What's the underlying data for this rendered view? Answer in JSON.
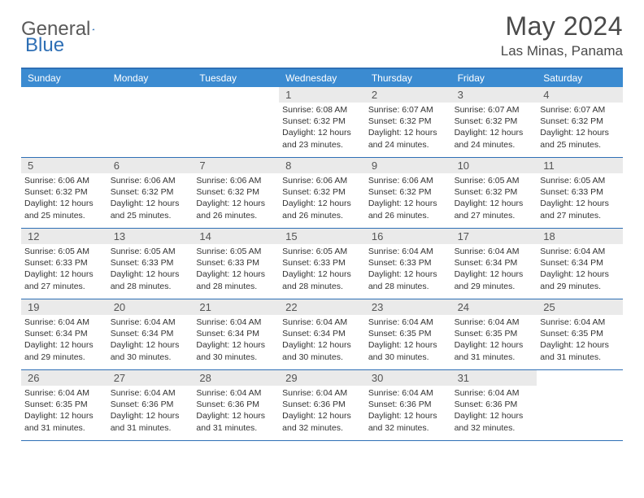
{
  "logo": {
    "part1": "General",
    "part2": "Blue"
  },
  "title": "May 2024",
  "location": "Las Minas, Panama",
  "colors": {
    "header_bar": "#3b8bd1",
    "border": "#2e6fb5",
    "day_num_bg": "#eaeaea",
    "text_dark": "#4a4a4a",
    "logo_gray": "#5a5a5a",
    "logo_blue": "#2e6fb5"
  },
  "days_of_week": [
    "Sunday",
    "Monday",
    "Tuesday",
    "Wednesday",
    "Thursday",
    "Friday",
    "Saturday"
  ],
  "cells": [
    {
      "n": "",
      "sr": "",
      "ss": "",
      "dl": ""
    },
    {
      "n": "",
      "sr": "",
      "ss": "",
      "dl": ""
    },
    {
      "n": "",
      "sr": "",
      "ss": "",
      "dl": ""
    },
    {
      "n": "1",
      "sr": "Sunrise: 6:08 AM",
      "ss": "Sunset: 6:32 PM",
      "dl": "Daylight: 12 hours and 23 minutes."
    },
    {
      "n": "2",
      "sr": "Sunrise: 6:07 AM",
      "ss": "Sunset: 6:32 PM",
      "dl": "Daylight: 12 hours and 24 minutes."
    },
    {
      "n": "3",
      "sr": "Sunrise: 6:07 AM",
      "ss": "Sunset: 6:32 PM",
      "dl": "Daylight: 12 hours and 24 minutes."
    },
    {
      "n": "4",
      "sr": "Sunrise: 6:07 AM",
      "ss": "Sunset: 6:32 PM",
      "dl": "Daylight: 12 hours and 25 minutes."
    },
    {
      "n": "5",
      "sr": "Sunrise: 6:06 AM",
      "ss": "Sunset: 6:32 PM",
      "dl": "Daylight: 12 hours and 25 minutes."
    },
    {
      "n": "6",
      "sr": "Sunrise: 6:06 AM",
      "ss": "Sunset: 6:32 PM",
      "dl": "Daylight: 12 hours and 25 minutes."
    },
    {
      "n": "7",
      "sr": "Sunrise: 6:06 AM",
      "ss": "Sunset: 6:32 PM",
      "dl": "Daylight: 12 hours and 26 minutes."
    },
    {
      "n": "8",
      "sr": "Sunrise: 6:06 AM",
      "ss": "Sunset: 6:32 PM",
      "dl": "Daylight: 12 hours and 26 minutes."
    },
    {
      "n": "9",
      "sr": "Sunrise: 6:06 AM",
      "ss": "Sunset: 6:32 PM",
      "dl": "Daylight: 12 hours and 26 minutes."
    },
    {
      "n": "10",
      "sr": "Sunrise: 6:05 AM",
      "ss": "Sunset: 6:32 PM",
      "dl": "Daylight: 12 hours and 27 minutes."
    },
    {
      "n": "11",
      "sr": "Sunrise: 6:05 AM",
      "ss": "Sunset: 6:33 PM",
      "dl": "Daylight: 12 hours and 27 minutes."
    },
    {
      "n": "12",
      "sr": "Sunrise: 6:05 AM",
      "ss": "Sunset: 6:33 PM",
      "dl": "Daylight: 12 hours and 27 minutes."
    },
    {
      "n": "13",
      "sr": "Sunrise: 6:05 AM",
      "ss": "Sunset: 6:33 PM",
      "dl": "Daylight: 12 hours and 28 minutes."
    },
    {
      "n": "14",
      "sr": "Sunrise: 6:05 AM",
      "ss": "Sunset: 6:33 PM",
      "dl": "Daylight: 12 hours and 28 minutes."
    },
    {
      "n": "15",
      "sr": "Sunrise: 6:05 AM",
      "ss": "Sunset: 6:33 PM",
      "dl": "Daylight: 12 hours and 28 minutes."
    },
    {
      "n": "16",
      "sr": "Sunrise: 6:04 AM",
      "ss": "Sunset: 6:33 PM",
      "dl": "Daylight: 12 hours and 28 minutes."
    },
    {
      "n": "17",
      "sr": "Sunrise: 6:04 AM",
      "ss": "Sunset: 6:34 PM",
      "dl": "Daylight: 12 hours and 29 minutes."
    },
    {
      "n": "18",
      "sr": "Sunrise: 6:04 AM",
      "ss": "Sunset: 6:34 PM",
      "dl": "Daylight: 12 hours and 29 minutes."
    },
    {
      "n": "19",
      "sr": "Sunrise: 6:04 AM",
      "ss": "Sunset: 6:34 PM",
      "dl": "Daylight: 12 hours and 29 minutes."
    },
    {
      "n": "20",
      "sr": "Sunrise: 6:04 AM",
      "ss": "Sunset: 6:34 PM",
      "dl": "Daylight: 12 hours and 30 minutes."
    },
    {
      "n": "21",
      "sr": "Sunrise: 6:04 AM",
      "ss": "Sunset: 6:34 PM",
      "dl": "Daylight: 12 hours and 30 minutes."
    },
    {
      "n": "22",
      "sr": "Sunrise: 6:04 AM",
      "ss": "Sunset: 6:34 PM",
      "dl": "Daylight: 12 hours and 30 minutes."
    },
    {
      "n": "23",
      "sr": "Sunrise: 6:04 AM",
      "ss": "Sunset: 6:35 PM",
      "dl": "Daylight: 12 hours and 30 minutes."
    },
    {
      "n": "24",
      "sr": "Sunrise: 6:04 AM",
      "ss": "Sunset: 6:35 PM",
      "dl": "Daylight: 12 hours and 31 minutes."
    },
    {
      "n": "25",
      "sr": "Sunrise: 6:04 AM",
      "ss": "Sunset: 6:35 PM",
      "dl": "Daylight: 12 hours and 31 minutes."
    },
    {
      "n": "26",
      "sr": "Sunrise: 6:04 AM",
      "ss": "Sunset: 6:35 PM",
      "dl": "Daylight: 12 hours and 31 minutes."
    },
    {
      "n": "27",
      "sr": "Sunrise: 6:04 AM",
      "ss": "Sunset: 6:36 PM",
      "dl": "Daylight: 12 hours and 31 minutes."
    },
    {
      "n": "28",
      "sr": "Sunrise: 6:04 AM",
      "ss": "Sunset: 6:36 PM",
      "dl": "Daylight: 12 hours and 31 minutes."
    },
    {
      "n": "29",
      "sr": "Sunrise: 6:04 AM",
      "ss": "Sunset: 6:36 PM",
      "dl": "Daylight: 12 hours and 32 minutes."
    },
    {
      "n": "30",
      "sr": "Sunrise: 6:04 AM",
      "ss": "Sunset: 6:36 PM",
      "dl": "Daylight: 12 hours and 32 minutes."
    },
    {
      "n": "31",
      "sr": "Sunrise: 6:04 AM",
      "ss": "Sunset: 6:36 PM",
      "dl": "Daylight: 12 hours and 32 minutes."
    },
    {
      "n": "",
      "sr": "",
      "ss": "",
      "dl": ""
    }
  ]
}
